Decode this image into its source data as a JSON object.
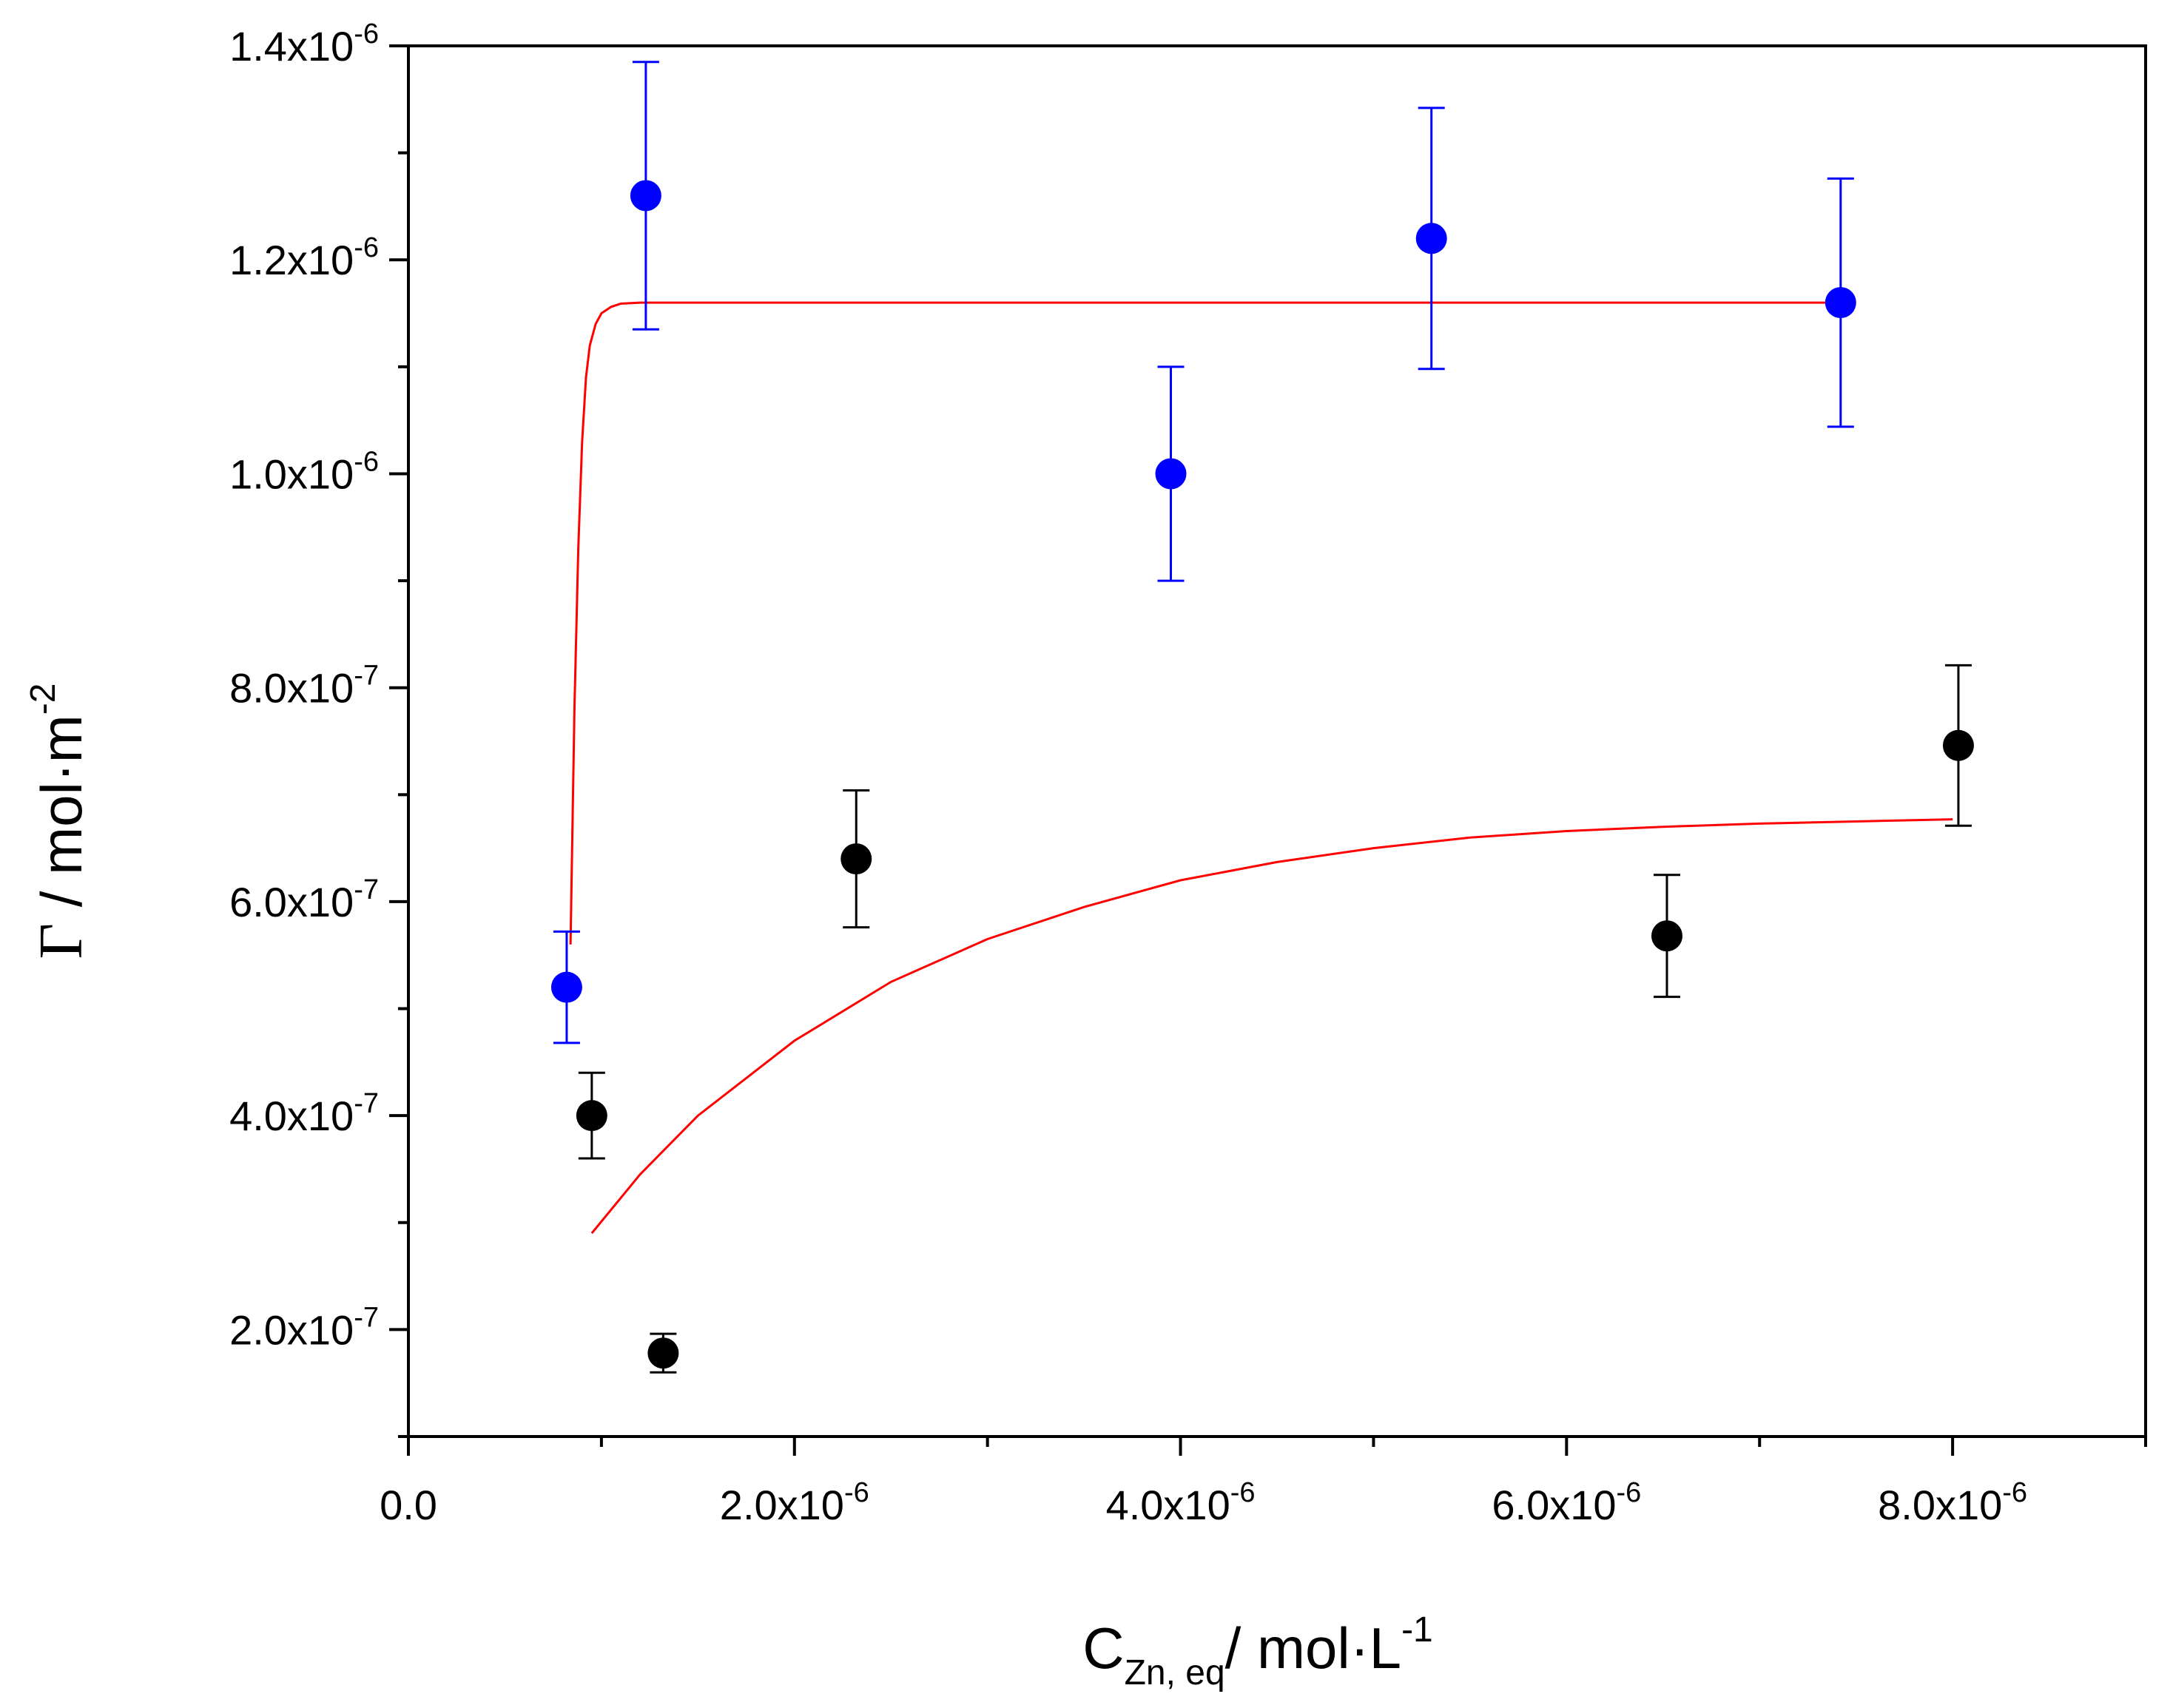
{
  "chart_data": {
    "type": "scatter",
    "title": "",
    "xlabel": {
      "main": "C",
      "sub": "Zn, eq",
      "rest": "/ mol·L",
      "sup": "-1"
    },
    "ylabel": {
      "greek": "Γ",
      "rest": " / mol·m",
      "sup": "-2"
    },
    "xlim": [
      0,
      9e-06
    ],
    "ylim": [
      1e-07,
      1.4e-06
    ],
    "x_ticks": [
      {
        "value": 0,
        "mantissa": "0.0",
        "exp": ""
      },
      {
        "value": 2e-06,
        "mantissa": "2.0x10",
        "exp": "-6"
      },
      {
        "value": 4e-06,
        "mantissa": "4.0x10",
        "exp": "-6"
      },
      {
        "value": 6e-06,
        "mantissa": "6.0x10",
        "exp": "-6"
      },
      {
        "value": 8e-06,
        "mantissa": "8.0x10",
        "exp": "-6"
      }
    ],
    "x_minor_ticks": [
      1e-06,
      3e-06,
      5e-06,
      7e-06,
      9e-06
    ],
    "y_ticks": [
      {
        "value": 2e-07,
        "mantissa": "2.0x10",
        "exp": "-7"
      },
      {
        "value": 4e-07,
        "mantissa": "4.0x10",
        "exp": "-7"
      },
      {
        "value": 6e-07,
        "mantissa": "6.0x10",
        "exp": "-7"
      },
      {
        "value": 8e-07,
        "mantissa": "8.0x10",
        "exp": "-7"
      },
      {
        "value": 1e-06,
        "mantissa": "1.0x10",
        "exp": "-6"
      },
      {
        "value": 1.2e-06,
        "mantissa": "1.2x10",
        "exp": "-6"
      },
      {
        "value": 1.4e-06,
        "mantissa": "1.4x10",
        "exp": "-6"
      }
    ],
    "y_minor_ticks": [
      1e-07,
      3e-07,
      5e-07,
      7e-07,
      9e-07,
      1.1e-06,
      1.3e-06
    ],
    "series": [
      {
        "name": "blue",
        "color": "#0000ff",
        "points": [
          {
            "x": 8.2e-07,
            "y": 5.2e-07,
            "err": 5.2e-08
          },
          {
            "x": 1.23e-06,
            "y": 1.26e-06,
            "err": 1.25e-07
          },
          {
            "x": 3.95e-06,
            "y": 1e-06,
            "err": 1e-07
          },
          {
            "x": 5.3e-06,
            "y": 1.22e-06,
            "err": 1.22e-07
          },
          {
            "x": 7.42e-06,
            "y": 1.16e-06,
            "err": 1.16e-07
          }
        ]
      },
      {
        "name": "black",
        "color": "#000000",
        "points": [
          {
            "x": 9.5e-07,
            "y": 4e-07,
            "err": 4e-08
          },
          {
            "x": 1.32e-06,
            "y": 1.78e-07,
            "err": 1.8e-08
          },
          {
            "x": 2.32e-06,
            "y": 6.4e-07,
            "err": 6.4e-08
          },
          {
            "x": 6.52e-06,
            "y": 5.68e-07,
            "err": 5.7e-08
          },
          {
            "x": 8.03e-06,
            "y": 7.46e-07,
            "err": 7.5e-08
          }
        ]
      }
    ],
    "fits": [
      {
        "name": "fit-blue",
        "color": "#ff0000",
        "x": [
          8.4e-07,
          8.6e-07,
          8.8e-07,
          9e-07,
          9.2e-07,
          9.4e-07,
          9.7e-07,
          1e-06,
          1.05e-06,
          1.1e-06,
          1.2e-06,
          1.5e-06,
          3e-06,
          5e-06,
          7.45e-06
        ],
        "y": [
          5.6e-07,
          7.8e-07,
          9.3e-07,
          1.03e-06,
          1.09e-06,
          1.12e-06,
          1.14e-06,
          1.15e-06,
          1.156e-06,
          1.159e-06,
          1.16e-06,
          1.16e-06,
          1.16e-06,
          1.16e-06,
          1.16e-06
        ]
      },
      {
        "name": "fit-black",
        "color": "#ff0000",
        "x": [
          9.5e-07,
          1.2e-06,
          1.5e-06,
          2e-06,
          2.5e-06,
          3e-06,
          3.5e-06,
          4e-06,
          4.5e-06,
          5e-06,
          5.5e-06,
          6e-06,
          6.5e-06,
          7e-06,
          7.5e-06,
          8e-06
        ],
        "y": [
          2.9e-07,
          3.45e-07,
          4e-07,
          4.7e-07,
          5.25e-07,
          5.65e-07,
          5.95e-07,
          6.2e-07,
          6.37e-07,
          6.5e-07,
          6.6e-07,
          6.66e-07,
          6.7e-07,
          6.73e-07,
          6.75e-07,
          6.77e-07
        ]
      }
    ]
  }
}
